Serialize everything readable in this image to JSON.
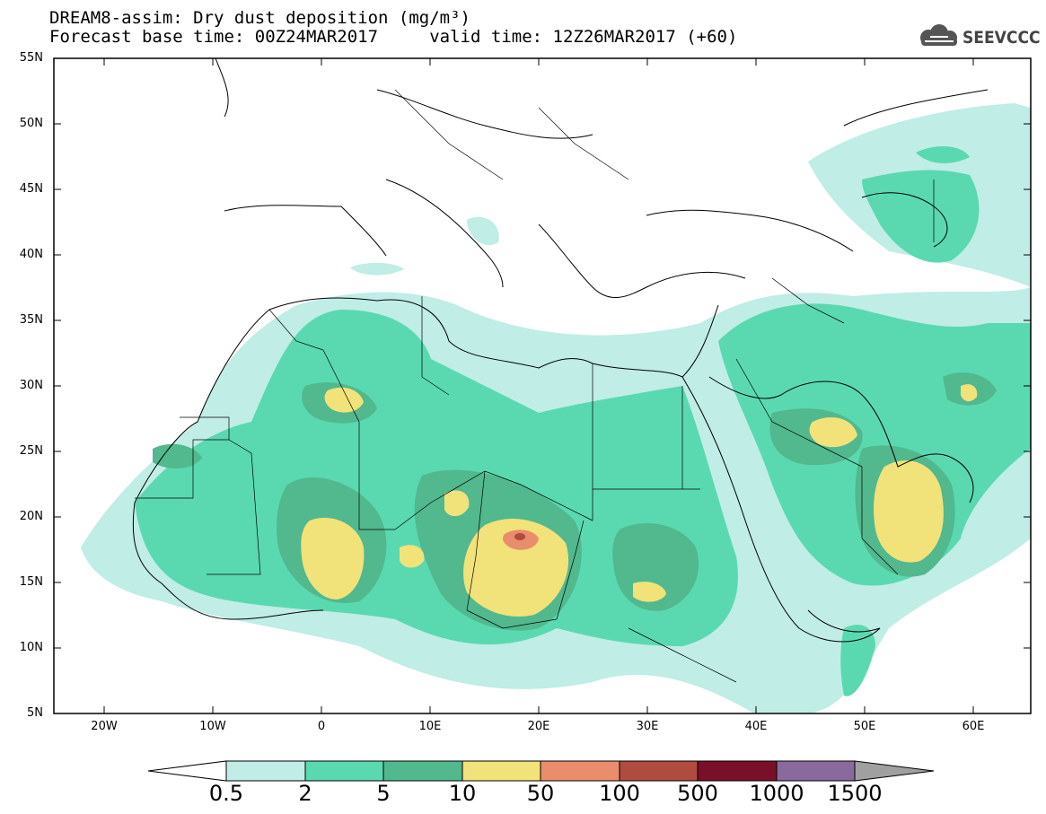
{
  "title": {
    "line1": "DREAM8-assim: Dry dust deposition (mg/m³)",
    "line2": "Forecast base time: 00Z24MAR2017     valid time: 12Z26MAR2017 (+60)"
  },
  "logo": {
    "text": "SEEVCCC",
    "icon": "cloud-icon"
  },
  "map": {
    "lon_range": [
      -25,
      65
    ],
    "lat_range": [
      5,
      55
    ],
    "lat_labels": [
      "55N",
      "50N",
      "45N",
      "40N",
      "35N",
      "30N",
      "25N",
      "20N",
      "15N",
      "10N",
      "5N"
    ],
    "lon_labels": [
      "20W",
      "10W",
      "0",
      "10E",
      "20E",
      "30E",
      "40E",
      "50E",
      "60E"
    ]
  },
  "colorbar": {
    "labels": [
      "0.5",
      "2",
      "5",
      "10",
      "50",
      "100",
      "500",
      "1000",
      "1500"
    ],
    "colors": [
      "#c0ede6",
      "#5ad9b0",
      "#52b88e",
      "#f2e27a",
      "#e98d6c",
      "#b04b3f",
      "#7a0f2a",
      "#8a6a9c"
    ],
    "under_color": "#ffffff",
    "over_color": "#a0a0a0"
  }
}
